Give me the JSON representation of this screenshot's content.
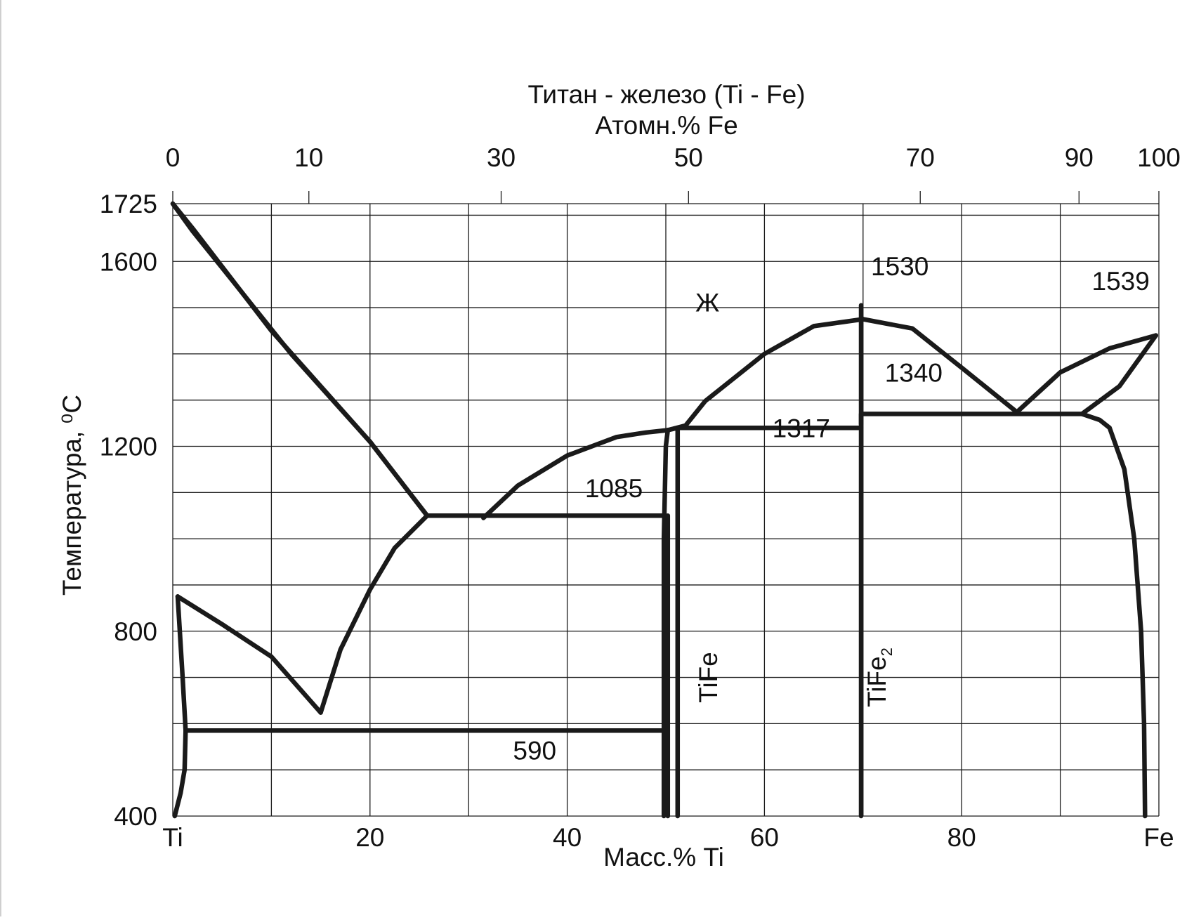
{
  "chart_data": {
    "type": "line",
    "title": "Титан - железо (Ti - Fe)",
    "top_axis_label": "Атомн.% Fe",
    "xlabel": "Масс.% Ti",
    "ylabel": "Температура, ⁰C",
    "ylim": [
      400,
      1725
    ],
    "xlim": [
      0,
      100
    ],
    "grid": true,
    "y_ticks": [
      "1725",
      "1600",
      "1200",
      "800",
      "400"
    ],
    "y_tick_values": [
      1725,
      1600,
      1200,
      800,
      400
    ],
    "bottom_ticks": [
      {
        "value": 0,
        "label": "Ti"
      },
      {
        "value": 20,
        "label": "20"
      },
      {
        "value": 40,
        "label": "40"
      },
      {
        "value": 60,
        "label": "60"
      },
      {
        "value": 80,
        "label": "80"
      },
      {
        "value": 100,
        "label": "Fe"
      }
    ],
    "top_ticks": [
      {
        "value": 0,
        "label": "0"
      },
      {
        "value": 13.8,
        "label": "10"
      },
      {
        "value": 33.3,
        "label": "30"
      },
      {
        "value": 52.3,
        "label": "50"
      },
      {
        "value": 75.8,
        "label": "70"
      },
      {
        "value": 91.9,
        "label": "90"
      },
      {
        "value": 100,
        "label": "100"
      }
    ],
    "annotations": [
      {
        "text": "1530",
        "x": 70.8,
        "y": 1570
      },
      {
        "text": "1539",
        "x": 93.2,
        "y": 1538
      },
      {
        "text": "Ж",
        "x": 53,
        "y": 1492
      },
      {
        "text": "1340",
        "x": 72.2,
        "y": 1340
      },
      {
        "text": "1317",
        "x": 60.8,
        "y": 1220
      },
      {
        "text": "1085",
        "x": 41.8,
        "y": 1090
      },
      {
        "text": "590",
        "x": 34.5,
        "y": 522
      },
      {
        "text": "TiFe",
        "x": 55.2,
        "y": 700,
        "rotate": -90
      },
      {
        "text": "TiFe",
        "sub": "2",
        "x": 72.3,
        "y": 700,
        "rotate": -90
      }
    ],
    "series": [
      {
        "values": [
          [
            0,
            1725
          ],
          [
            2,
            1672
          ],
          [
            10,
            1450
          ],
          [
            20,
            1210
          ],
          [
            25.8,
            1050
          ]
        ]
      },
      {
        "values": [
          [
            0,
            1725
          ],
          [
            2,
            1666
          ],
          [
            6,
            1560
          ],
          [
            12,
            1400
          ],
          [
            20,
            1210
          ],
          [
            25.8,
            1050
          ]
        ]
      },
      {
        "values": [
          [
            25.8,
            1050
          ],
          [
            22.5,
            980
          ],
          [
            20,
            890
          ],
          [
            17,
            760
          ],
          [
            15,
            624
          ]
        ]
      },
      {
        "values": [
          [
            0.2,
            400
          ],
          [
            0.8,
            450
          ],
          [
            1.2,
            500
          ],
          [
            1.3,
            585
          ],
          [
            1,
            700
          ],
          [
            0.5,
            875
          ]
        ]
      },
      {
        "values": [
          [
            0.5,
            875
          ],
          [
            5,
            815
          ],
          [
            10,
            745
          ],
          [
            15,
            624
          ]
        ]
      },
      {
        "values": [
          [
            31.5,
            1045
          ],
          [
            35,
            1115
          ],
          [
            40,
            1180
          ],
          [
            45,
            1220
          ],
          [
            48,
            1230
          ],
          [
            50.2,
            1235
          ]
        ]
      },
      {
        "values": [
          [
            50.2,
            1235
          ],
          [
            52,
            1245
          ],
          [
            54,
            1298
          ],
          [
            60,
            1400
          ],
          [
            65,
            1460
          ],
          [
            70,
            1475
          ]
        ]
      },
      {
        "values": [
          [
            70,
            1475
          ],
          [
            75,
            1455
          ],
          [
            80,
            1370
          ],
          [
            85.6,
            1274
          ]
        ]
      },
      {
        "values": [
          [
            85.6,
            1274
          ],
          [
            90,
            1360
          ],
          [
            95,
            1412
          ],
          [
            99.7,
            1440
          ]
        ]
      },
      {
        "values": [
          [
            99.7,
            1440
          ],
          [
            96,
            1330
          ],
          [
            92.2,
            1270
          ]
        ]
      },
      {
        "values": [
          [
            92.2,
            1270
          ],
          [
            94,
            1257
          ],
          [
            95,
            1240
          ],
          [
            96.5,
            1150
          ],
          [
            97.5,
            1000
          ],
          [
            98.2,
            800
          ],
          [
            98.5,
            600
          ],
          [
            98.6,
            400
          ]
        ]
      },
      {
        "values": [
          [
            50.2,
            1235
          ],
          [
            50,
            1200
          ],
          [
            49.8,
            1000
          ],
          [
            49.8,
            400
          ]
        ]
      },
      {
        "values": [
          [
            50.2,
            1235
          ],
          [
            51.2,
            1240
          ],
          [
            51.2,
            400
          ]
        ]
      },
      {
        "values": [
          [
            1.3,
            585
          ],
          [
            50,
            585
          ]
        ]
      },
      {
        "values": [
          [
            25.8,
            1050
          ],
          [
            50,
            1050
          ]
        ]
      },
      {
        "values": [
          [
            51.2,
            1240
          ],
          [
            69.8,
            1240
          ]
        ]
      },
      {
        "values": [
          [
            69.8,
            1248
          ],
          [
            69.8,
            1270
          ],
          [
            92.2,
            1270
          ]
        ]
      },
      {
        "values": [
          [
            69.8,
            1505
          ],
          [
            69.8,
            400
          ]
        ]
      },
      {
        "values": [
          [
            50.2,
            1050
          ],
          [
            50.2,
            400
          ]
        ]
      }
    ]
  }
}
